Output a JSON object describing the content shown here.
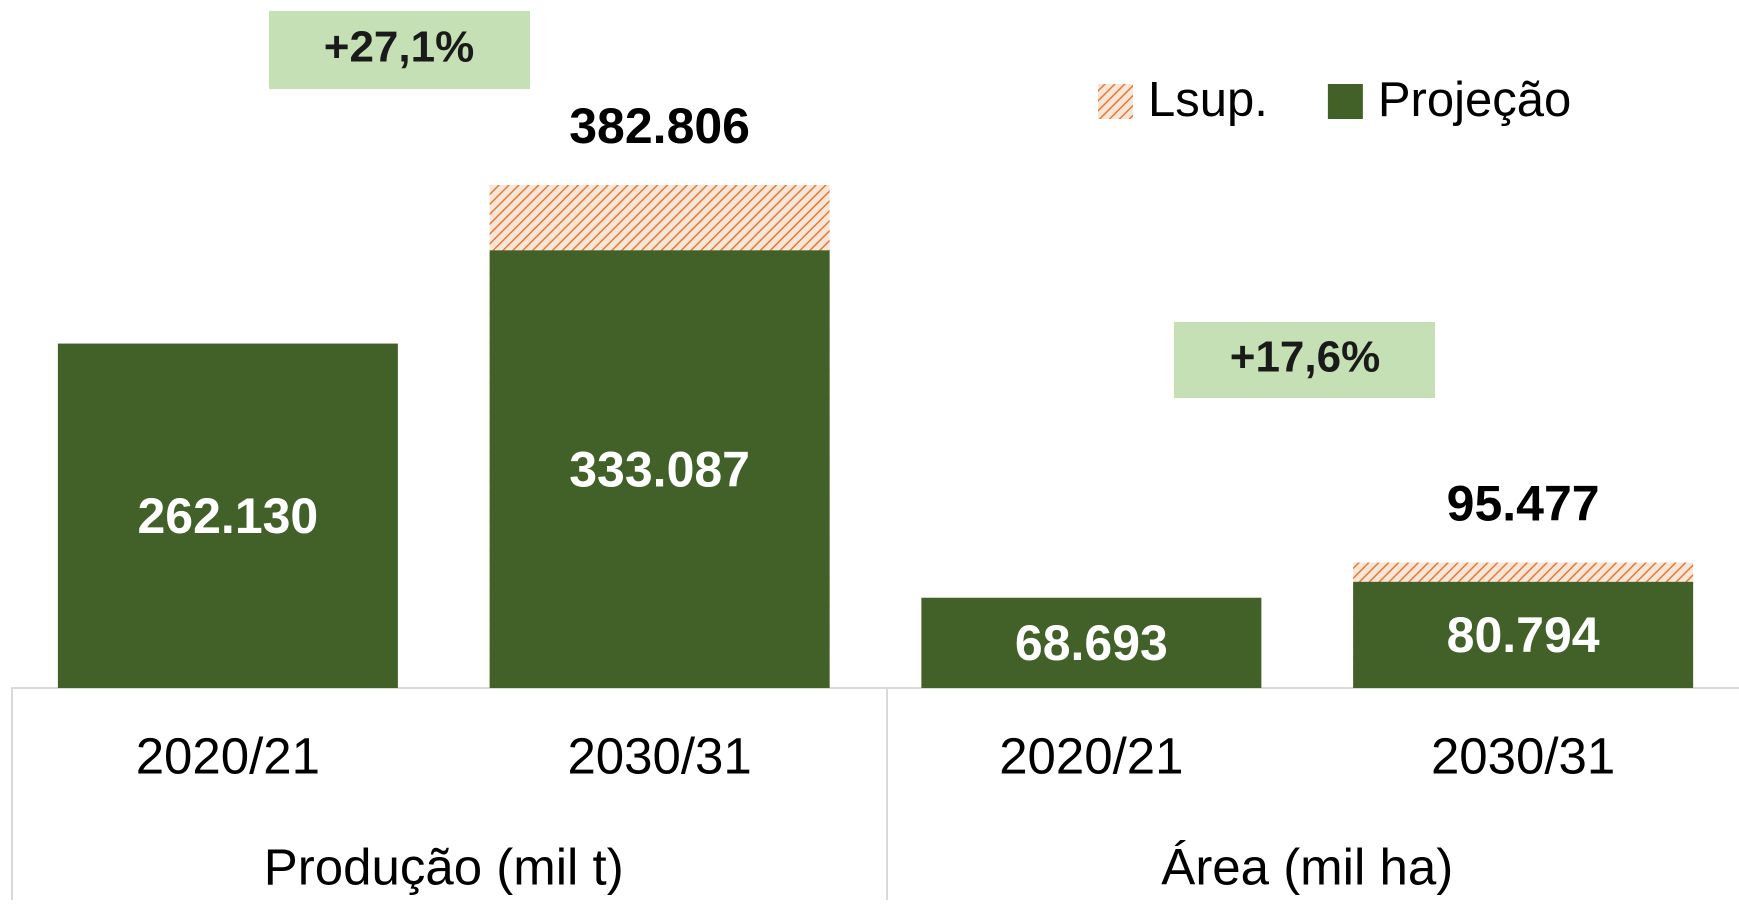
{
  "chart_data": {
    "type": "bar",
    "overlap": true,
    "categories": [
      "2020/21",
      "2030/31",
      "2020/21",
      "2030/31"
    ],
    "groups": [
      "Produção (mil t)",
      "Área (mil ha)"
    ],
    "series": [
      {
        "name": "Lsup.",
        "color": "#e07b39",
        "pattern": "hatch",
        "values": [
          null,
          382806,
          null,
          95477
        ],
        "value_labels": [
          null,
          "382.806",
          null,
          "95.477"
        ]
      },
      {
        "name": "Projeção",
        "color": "#426128",
        "values": [
          262130,
          333087,
          68693,
          80794
        ],
        "value_labels": [
          "262.130",
          "333.087",
          "68.693",
          "80.794"
        ]
      }
    ],
    "annotations": [
      "+27,1%",
      "+17,6%"
    ],
    "legend": "top-right"
  }
}
